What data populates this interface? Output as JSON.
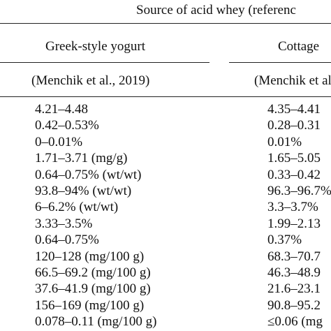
{
  "table": {
    "header": {
      "group": "Source of acid whey (referenc",
      "columns": [
        "Greek-style yogurt",
        "Cottage"
      ],
      "references": [
        "(Menchik et al., 2019)",
        "(Menchik et al."
      ]
    },
    "rows": [
      [
        "4.21–4.48",
        "4.35–4.41"
      ],
      [
        "0.42–0.53%",
        "0.28–0.31"
      ],
      [
        "0–0.01%",
        "0.01%"
      ],
      [
        "1.71–3.71 (mg/g)",
        "1.65–5.05"
      ],
      [
        "0.64–0.75% (wt/wt)",
        "0.33–0.42"
      ],
      [
        "93.8–94% (wt/wt)",
        "96.3–96.7%"
      ],
      [
        "6–6.2% (wt/wt)",
        "3.3–3.7%"
      ],
      [
        "3.33–3.5%",
        "1.99–2.13"
      ],
      [
        "0.64–0.75%",
        "0.37%"
      ],
      [
        "120–128 (mg/100 g)",
        "68.3–70.7"
      ],
      [
        "66.5–69.2 (mg/100 g)",
        "46.3–48.9"
      ],
      [
        "37.6–41.9 (mg/100 g)",
        "21.6–23.1"
      ],
      [
        "156–169 (mg/100 g)",
        "90.8–95.2"
      ],
      [
        "0.078–0.11 (mg/100 g)",
        "≤0.06 (mg"
      ]
    ]
  }
}
